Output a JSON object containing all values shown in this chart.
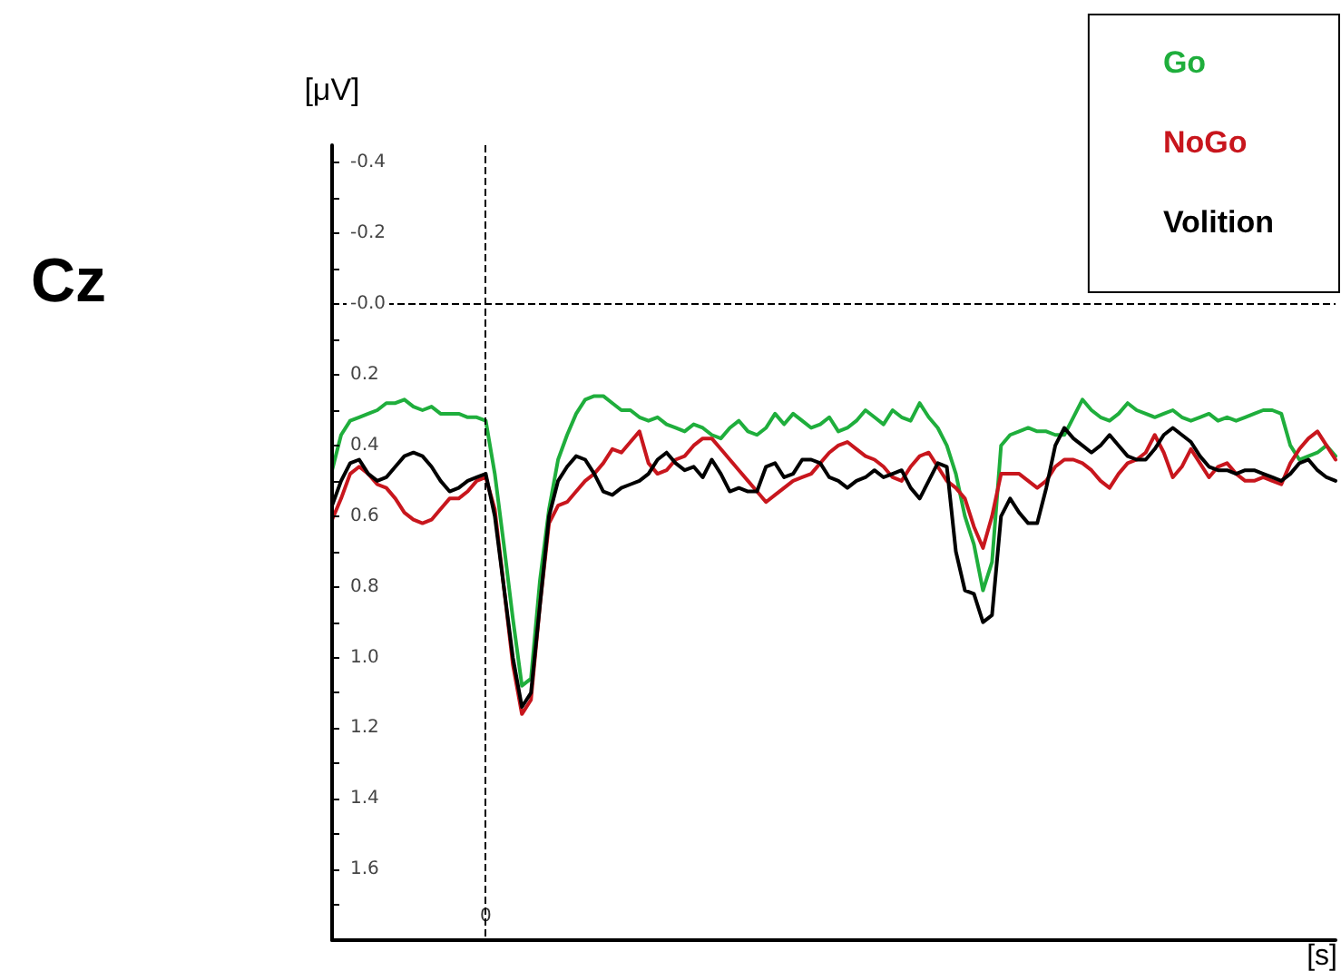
{
  "chart_data": {
    "type": "line",
    "title": "Cz",
    "ylabel": "[μV]",
    "xlabel": "[s]",
    "categories": [
      null,
      null,
      null,
      null,
      null,
      null,
      null,
      null,
      null,
      null,
      null,
      null,
      null,
      null,
      null,
      null,
      null,
      "0",
      null,
      null,
      null,
      null,
      null,
      null,
      null,
      null,
      null,
      null,
      null,
      null,
      null,
      null,
      null,
      null,
      null,
      null,
      null,
      null,
      null,
      null,
      null,
      null,
      null,
      null,
      null,
      null,
      null,
      null,
      null,
      null,
      null,
      null,
      null,
      null,
      null,
      null,
      null,
      null,
      null,
      null,
      null,
      null,
      null,
      null,
      null,
      null,
      null,
      null,
      null,
      null,
      null,
      null,
      null,
      null,
      null,
      null,
      null,
      null,
      null,
      null,
      null,
      null,
      null,
      null,
      null,
      null,
      null,
      null,
      null,
      null,
      null,
      null,
      null,
      null,
      null,
      null,
      null,
      null,
      null,
      null,
      null,
      null,
      null,
      null,
      null,
      null,
      null,
      null,
      null,
      null,
      null,
      null
    ],
    "series": [
      {
        "name": "Go",
        "color": "#1fae3c",
        "values": [
          0.47,
          0.37,
          0.33,
          0.32,
          0.31,
          0.3,
          0.28,
          0.28,
          0.27,
          0.29,
          0.3,
          0.29,
          0.31,
          0.31,
          0.31,
          0.32,
          0.32,
          0.33,
          0.48,
          0.68,
          0.89,
          1.08,
          1.06,
          0.78,
          0.58,
          0.44,
          0.37,
          0.31,
          0.27,
          0.26,
          0.26,
          0.28,
          0.3,
          0.3,
          0.32,
          0.33,
          0.32,
          0.34,
          0.35,
          0.36,
          0.34,
          0.35,
          0.37,
          0.38,
          0.35,
          0.33,
          0.36,
          0.37,
          0.35,
          0.31,
          0.34,
          0.31,
          0.33,
          0.35,
          0.34,
          0.32,
          0.36,
          0.35,
          0.33,
          0.3,
          0.32,
          0.34,
          0.3,
          0.32,
          0.33,
          0.28,
          0.32,
          0.35,
          0.4,
          0.48,
          0.6,
          0.68,
          0.81,
          0.73,
          0.4,
          0.37,
          0.36,
          0.35,
          0.36,
          0.36,
          0.37,
          0.37,
          0.32,
          0.27,
          0.3,
          0.32,
          0.33,
          0.31,
          0.28,
          0.3,
          0.31,
          0.32,
          0.31,
          0.3,
          0.32,
          0.33,
          0.32,
          0.31,
          0.33,
          0.32,
          0.33,
          0.32,
          0.31,
          0.3,
          0.3,
          0.31,
          0.4,
          0.44,
          0.43,
          0.42,
          0.4,
          0.43
        ]
      },
      {
        "name": "NoGo",
        "color": "#c8161d",
        "values": [
          0.61,
          0.55,
          0.48,
          0.46,
          0.48,
          0.51,
          0.52,
          0.55,
          0.59,
          0.61,
          0.62,
          0.61,
          0.58,
          0.55,
          0.55,
          0.53,
          0.5,
          0.49,
          0.58,
          0.8,
          1.02,
          1.16,
          1.12,
          0.85,
          0.62,
          0.57,
          0.56,
          0.53,
          0.5,
          0.48,
          0.45,
          0.41,
          0.42,
          0.39,
          0.36,
          0.45,
          0.48,
          0.47,
          0.44,
          0.43,
          0.4,
          0.38,
          0.38,
          0.41,
          0.44,
          0.47,
          0.5,
          0.53,
          0.56,
          0.54,
          0.52,
          0.5,
          0.49,
          0.48,
          0.45,
          0.42,
          0.4,
          0.39,
          0.41,
          0.43,
          0.44,
          0.46,
          0.49,
          0.5,
          0.46,
          0.43,
          0.42,
          0.46,
          0.5,
          0.52,
          0.55,
          0.63,
          0.69,
          0.6,
          0.48,
          0.48,
          0.48,
          0.5,
          0.52,
          0.5,
          0.46,
          0.44,
          0.44,
          0.45,
          0.47,
          0.5,
          0.52,
          0.48,
          0.45,
          0.44,
          0.42,
          0.37,
          0.42,
          0.49,
          0.46,
          0.41,
          0.45,
          0.49,
          0.46,
          0.45,
          0.48,
          0.5,
          0.5,
          0.49,
          0.5,
          0.51,
          0.45,
          0.41,
          0.38,
          0.36,
          0.4,
          0.44
        ]
      },
      {
        "name": "Volition",
        "color": "#000000",
        "values": [
          0.57,
          0.5,
          0.45,
          0.44,
          0.48,
          0.5,
          0.49,
          0.46,
          0.43,
          0.42,
          0.43,
          0.46,
          0.5,
          0.53,
          0.52,
          0.5,
          0.49,
          0.48,
          0.6,
          0.8,
          1.0,
          1.14,
          1.1,
          0.85,
          0.6,
          0.5,
          0.46,
          0.43,
          0.44,
          0.48,
          0.53,
          0.54,
          0.52,
          0.51,
          0.5,
          0.48,
          0.44,
          0.42,
          0.45,
          0.47,
          0.46,
          0.49,
          0.44,
          0.48,
          0.53,
          0.52,
          0.53,
          0.53,
          0.46,
          0.45,
          0.49,
          0.48,
          0.44,
          0.44,
          0.45,
          0.49,
          0.5,
          0.52,
          0.5,
          0.49,
          0.47,
          0.49,
          0.48,
          0.47,
          0.52,
          0.55,
          0.5,
          0.45,
          0.46,
          0.7,
          0.81,
          0.82,
          0.9,
          0.88,
          0.6,
          0.55,
          0.59,
          0.62,
          0.62,
          0.52,
          0.4,
          0.35,
          0.38,
          0.4,
          0.42,
          0.4,
          0.37,
          0.4,
          0.43,
          0.44,
          0.44,
          0.41,
          0.37,
          0.35,
          0.37,
          0.39,
          0.43,
          0.46,
          0.47,
          0.47,
          0.48,
          0.47,
          0.47,
          0.48,
          0.49,
          0.5,
          0.48,
          0.45,
          0.44,
          0.47,
          0.49,
          0.5
        ]
      }
    ],
    "ylim": [
      1.8,
      -0.45
    ],
    "yticks": [
      {
        "value": -0.4,
        "label": "-0.4"
      },
      {
        "value": -0.3,
        "label": null
      },
      {
        "value": -0.2,
        "label": "-0.2"
      },
      {
        "value": -0.1,
        "label": null
      },
      {
        "value": 0,
        "label": "-0.0"
      },
      {
        "value": 0.1,
        "label": null
      },
      {
        "value": 0.2,
        "label": "0.2"
      },
      {
        "value": 0.3,
        "label": null
      },
      {
        "value": 0.4,
        "label": "0.4"
      },
      {
        "value": 0.5,
        "label": null
      },
      {
        "value": 0.6,
        "label": "0.6"
      },
      {
        "value": 0.7,
        "label": null
      },
      {
        "value": 0.8,
        "label": "0.8"
      },
      {
        "value": 0.9,
        "label": null
      },
      {
        "value": 1.0,
        "label": "1.0"
      },
      {
        "value": 1.1,
        "label": null
      },
      {
        "value": 1.2,
        "label": "1.2"
      },
      {
        "value": 1.3,
        "label": null
      },
      {
        "value": 1.4,
        "label": "1.4"
      },
      {
        "value": 1.5,
        "label": null
      },
      {
        "value": 1.6,
        "label": "1.6"
      },
      {
        "value": 1.7,
        "label": null
      }
    ],
    "ref_lines": [
      {
        "axis": "x",
        "value": "0",
        "line_style": "dashed",
        "color": "#000000"
      },
      {
        "axis": "y",
        "value": 0,
        "line_style": "dashed",
        "color": "#000000"
      }
    ],
    "legend": "top right",
    "marker": "none",
    "line_style": "solid",
    "grid": false
  }
}
